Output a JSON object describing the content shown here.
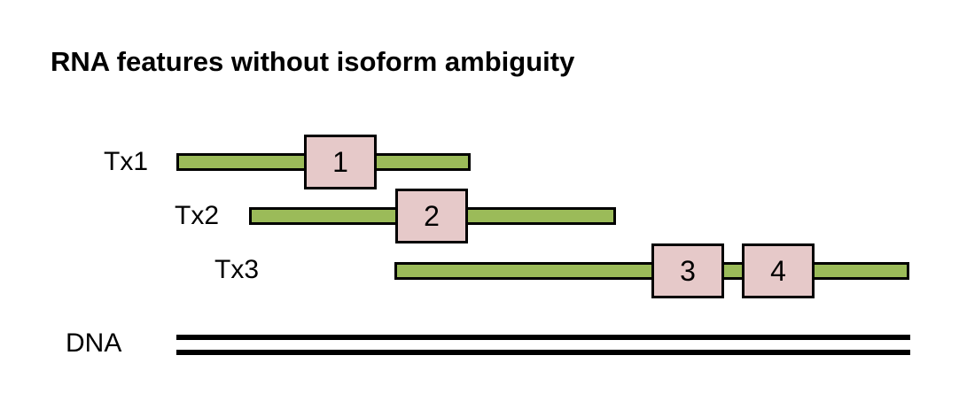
{
  "title": "RNA features without isoform ambiguity",
  "transcripts": [
    {
      "label": "Tx1",
      "features": [
        "1"
      ]
    },
    {
      "label": "Tx2",
      "features": [
        "2"
      ]
    },
    {
      "label": "Tx3",
      "features": [
        "3",
        "4"
      ]
    }
  ],
  "dna": {
    "label": "DNA"
  },
  "colors": {
    "transcript": "#9bbb59",
    "feature": "#e6c9c9",
    "outline": "#000000"
  }
}
